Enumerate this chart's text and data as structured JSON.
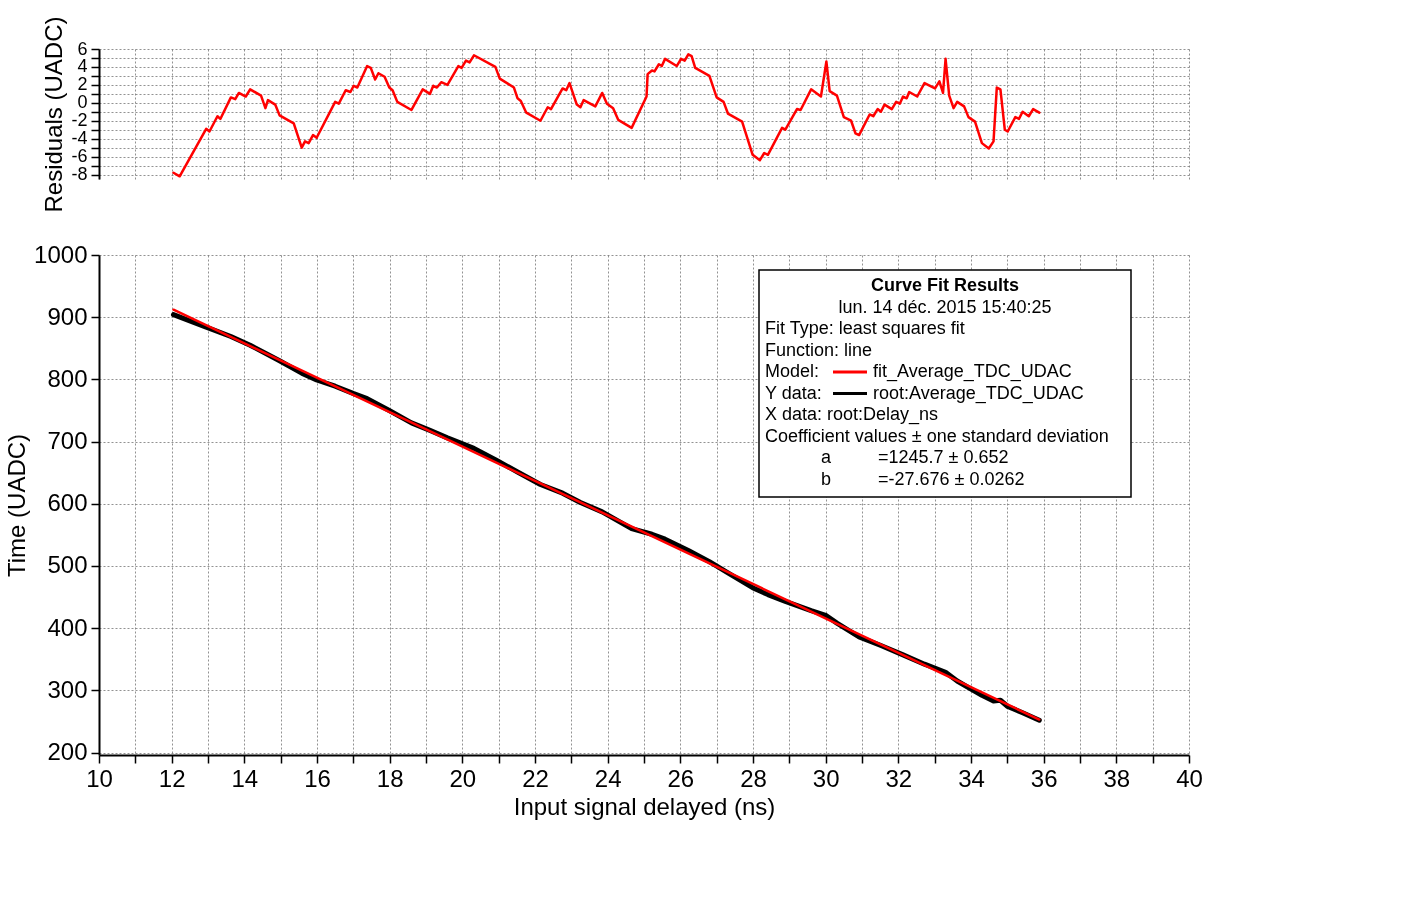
{
  "chart_data": [
    {
      "type": "line",
      "ylabel": "Residuals (UADC)",
      "xlim": [
        10,
        40
      ],
      "ylim": [
        -8.5,
        6
      ],
      "xticks": [
        10,
        {
          "value": 11,
          "label": null
        },
        12,
        {
          "value": 13,
          "label": null
        },
        14,
        {
          "value": 15,
          "label": null
        },
        16,
        {
          "value": 17,
          "label": null
        },
        18,
        {
          "value": 19,
          "label": null
        },
        20,
        {
          "value": 21,
          "label": null
        },
        22,
        {
          "value": 23,
          "label": null
        },
        24,
        {
          "value": 25,
          "label": null
        },
        26,
        {
          "value": 27,
          "label": null
        },
        28,
        {
          "value": 29,
          "label": null
        },
        30,
        {
          "value": 31,
          "label": null
        },
        32,
        {
          "value": 33,
          "label": null
        },
        34,
        {
          "value": 35,
          "label": null
        },
        36,
        {
          "value": 37,
          "label": null
        },
        38,
        {
          "value": 39,
          "label": null
        },
        40
      ],
      "yticks": [
        -8,
        {
          "value": -7,
          "label": null
        },
        -6,
        {
          "value": -5,
          "label": null
        },
        -4,
        {
          "value": -3,
          "label": null
        },
        -2,
        {
          "value": -1,
          "label": null
        },
        0,
        {
          "value": 1,
          "label": null
        },
        2,
        {
          "value": 3,
          "label": null
        },
        4,
        {
          "value": 5,
          "label": null
        },
        6
      ],
      "tick_labels": "y",
      "grid": true,
      "marker": "none",
      "line_style": "solid",
      "series": [
        {
          "color": "#ff0000",
          "x": [
            12.05,
            12.22,
            12.95,
            13.04,
            13.26,
            13.34,
            13.63,
            13.75,
            13.85,
            14.04,
            14.16,
            14.46,
            14.58,
            14.65,
            14.85,
            14.97,
            15.36,
            15.58,
            15.67,
            15.77,
            15.89,
            15.99,
            16.5,
            16.6,
            16.79,
            16.92,
            17.01,
            17.11,
            17.38,
            17.48,
            17.6,
            17.69,
            17.86,
            17.99,
            18.08,
            18.21,
            18.6,
            18.91,
            19.11,
            19.2,
            19.3,
            19.42,
            19.59,
            19.89,
            19.98,
            20.1,
            20.2,
            20.32,
            20.91,
            21.03,
            21.42,
            21.52,
            21.61,
            21.76,
            22.15,
            22.35,
            22.44,
            22.76,
            22.86,
            22.95,
            23.15,
            23.25,
            23.34,
            23.66,
            23.85,
            23.98,
            24.15,
            24.29,
            24.66,
            25.07,
            25.1,
            25.22,
            25.29,
            25.41,
            25.49,
            25.58,
            25.9,
            26.02,
            26.12,
            26.22,
            26.31,
            26.41,
            26.8,
            27.0,
            27.19,
            27.31,
            27.7,
            27.99,
            28.19,
            28.31,
            28.41,
            28.8,
            28.89,
            29.21,
            29.31,
            29.6,
            29.87,
            30.02,
            30.11,
            30.31,
            30.5,
            30.7,
            30.82,
            30.92,
            31.21,
            31.31,
            31.43,
            31.52,
            31.62,
            31.82,
            31.94,
            32.04,
            32.13,
            32.23,
            32.3,
            32.52,
            32.72,
            33.01,
            33.13,
            33.23,
            33.3,
            33.4,
            33.52,
            33.62,
            33.81,
            33.93,
            34.11,
            34.3,
            34.49,
            34.62,
            34.71,
            34.81,
            34.93,
            35.01,
            35.22,
            35.32,
            35.42,
            35.59,
            35.71,
            35.88
          ],
          "values": [
            -7.8,
            -8.2,
            -2.9,
            -3.2,
            -1.5,
            -1.8,
            0.6,
            0.4,
            1.1,
            0.7,
            1.5,
            0.8,
            -0.6,
            0.3,
            -0.2,
            -1.4,
            -2.3,
            -5.0,
            -4.3,
            -4.5,
            -3.6,
            -3.9,
            0.1,
            -0.1,
            1.4,
            1.2,
            1.9,
            1.7,
            4.1,
            3.9,
            2.6,
            3.3,
            2.9,
            1.7,
            1.4,
            0.1,
            -0.8,
            1.5,
            1.0,
            1.9,
            1.7,
            2.3,
            2.0,
            4.1,
            3.9,
            4.7,
            4.5,
            5.3,
            4.0,
            2.7,
            1.7,
            0.5,
            0.2,
            -1.1,
            -2.0,
            -0.5,
            -0.7,
            1.6,
            1.4,
            2.2,
            -0.2,
            -0.5,
            0.3,
            -0.4,
            1.1,
            -0.1,
            -0.6,
            -1.9,
            -2.8,
            0.7,
            3.2,
            3.6,
            3.5,
            4.3,
            4.1,
            4.9,
            4.1,
            4.9,
            4.7,
            5.4,
            5.2,
            3.9,
            3.0,
            0.6,
            0.1,
            -1.2,
            -2.1,
            -5.8,
            -6.4,
            -5.6,
            -5.8,
            -2.8,
            -3.0,
            -0.7,
            -0.8,
            1.5,
            0.7,
            4.6,
            1.3,
            0.8,
            -1.6,
            -2.0,
            -3.4,
            -3.6,
            -1.3,
            -1.5,
            -0.7,
            -1.0,
            -0.2,
            -0.7,
            0.1,
            -0.1,
            0.7,
            0.5,
            1.2,
            0.7,
            2.2,
            1.6,
            2.4,
            1.1,
            4.9,
            0.8,
            -0.6,
            0.1,
            -0.4,
            -1.6,
            -2.1,
            -4.5,
            -5.1,
            -4.3,
            1.7,
            1.5,
            -3.0,
            -3.2,
            -1.6,
            -1.8,
            -1.0,
            -1.5,
            -0.7,
            -1.1
          ]
        }
      ]
    },
    {
      "type": "line",
      "xlabel": "Input signal delayed (ns)",
      "ylabel": "Time (UADC)",
      "xlim": [
        10,
        40
      ],
      "ylim": [
        196,
        1000
      ],
      "xticks": [
        10,
        {
          "value": 11,
          "label": null
        },
        12,
        {
          "value": 13,
          "label": null
        },
        14,
        {
          "value": 15,
          "label": null
        },
        16,
        {
          "value": 17,
          "label": null
        },
        18,
        {
          "value": 19,
          "label": null
        },
        20,
        {
          "value": 21,
          "label": null
        },
        22,
        {
          "value": 23,
          "label": null
        },
        24,
        {
          "value": 25,
          "label": null
        },
        26,
        {
          "value": 27,
          "label": null
        },
        28,
        {
          "value": 29,
          "label": null
        },
        30,
        {
          "value": 31,
          "label": null
        },
        32,
        {
          "value": 33,
          "label": null
        },
        34,
        {
          "value": 35,
          "label": null
        },
        36,
        {
          "value": 37,
          "label": null
        },
        38,
        {
          "value": 39,
          "label": null
        },
        40
      ],
      "yticks": [
        200,
        300,
        400,
        500,
        600,
        700,
        800,
        900,
        1000
      ],
      "grid": true,
      "marker": "none",
      "line_style": "solid",
      "legend": "top right",
      "annotations": [
        "Curve Fit Results",
        "lun. 14 déc. 2015 15:40:25",
        "Fit Type: least squares fit",
        "Function: line",
        "Model:",
        "Y data:",
        "X data: root:Delay_ns",
        "Coefficient values ± one standard deviation",
        "a",
        "=1245.7 ± 0.652",
        "b",
        "=-27.676 ± 0.0262"
      ],
      "series": [
        {
          "name": "fit_Average_TDC_UDAC",
          "color": "#ff0000",
          "x": [
            12.05,
            35.88
          ],
          "values": [
            912,
            253
          ]
        },
        {
          "name": "root:Average_TDC_UDAC",
          "color": "#000000",
          "x": [
            12.05,
            12.95,
            13.63,
            14.16,
            14.97,
            15.58,
            15.99,
            16.5,
            17.01,
            17.38,
            17.99,
            18.6,
            19.11,
            19.59,
            20.32,
            20.91,
            21.52,
            22.15,
            22.76,
            23.25,
            23.85,
            24.66,
            25.22,
            25.58,
            26.22,
            26.8,
            27.31,
            27.99,
            28.41,
            28.89,
            29.6,
            30.02,
            30.31,
            30.92,
            31.52,
            32.13,
            32.72,
            33.3,
            33.62,
            34.3,
            34.62,
            34.81,
            35.01,
            35.42,
            35.88
          ],
          "values": [
            904,
            884,
            869,
            855,
            830,
            810,
            799,
            789,
            777,
            769,
            750,
            730,
            718,
            706,
            689,
            671,
            651,
            631,
            617,
            602,
            587,
            560,
            551,
            543,
            525,
            507,
            489,
            465,
            454,
            443,
            428,
            420,
            408,
            386,
            372,
            357,
            342,
            329,
            315,
            292,
            283,
            284,
            274,
            264,
            252
          ]
        }
      ]
    }
  ]
}
